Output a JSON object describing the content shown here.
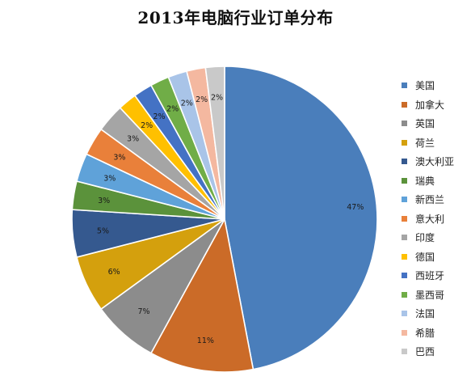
{
  "chart_data": {
    "type": "pie",
    "title": "2013年电脑行业订单分布",
    "categories": [
      "美国",
      "加拿大",
      "英国",
      "荷兰",
      "澳大利亚",
      "瑞典",
      "新西兰",
      "意大利",
      "印度",
      "德国",
      "西班牙",
      "墨西哥",
      "法国",
      "希腊",
      "巴西"
    ],
    "values": [
      47,
      11,
      7,
      6,
      5,
      3,
      3,
      3,
      3,
      2,
      2,
      2,
      2,
      2,
      2
    ],
    "value_labels": [
      "47%",
      "11%",
      "7%",
      "6%",
      "5%",
      "3%",
      "3%",
      "3%",
      "3%",
      "2%",
      "2%",
      "2%",
      "2%",
      "2%",
      "2%"
    ],
    "colors": [
      "#4a7ebb",
      "#cb6b28",
      "#8c8c8c",
      "#d4a00d",
      "#35598f",
      "#5b923b",
      "#5fa2d9",
      "#e9803a",
      "#a5a5a5",
      "#ffc000",
      "#4472c4",
      "#70ad47",
      "#a9c4e8",
      "#f4b8a0",
      "#c9c9c9"
    ],
    "start": "12 o'clock",
    "direction": "clockwise",
    "legend_position": "right"
  }
}
